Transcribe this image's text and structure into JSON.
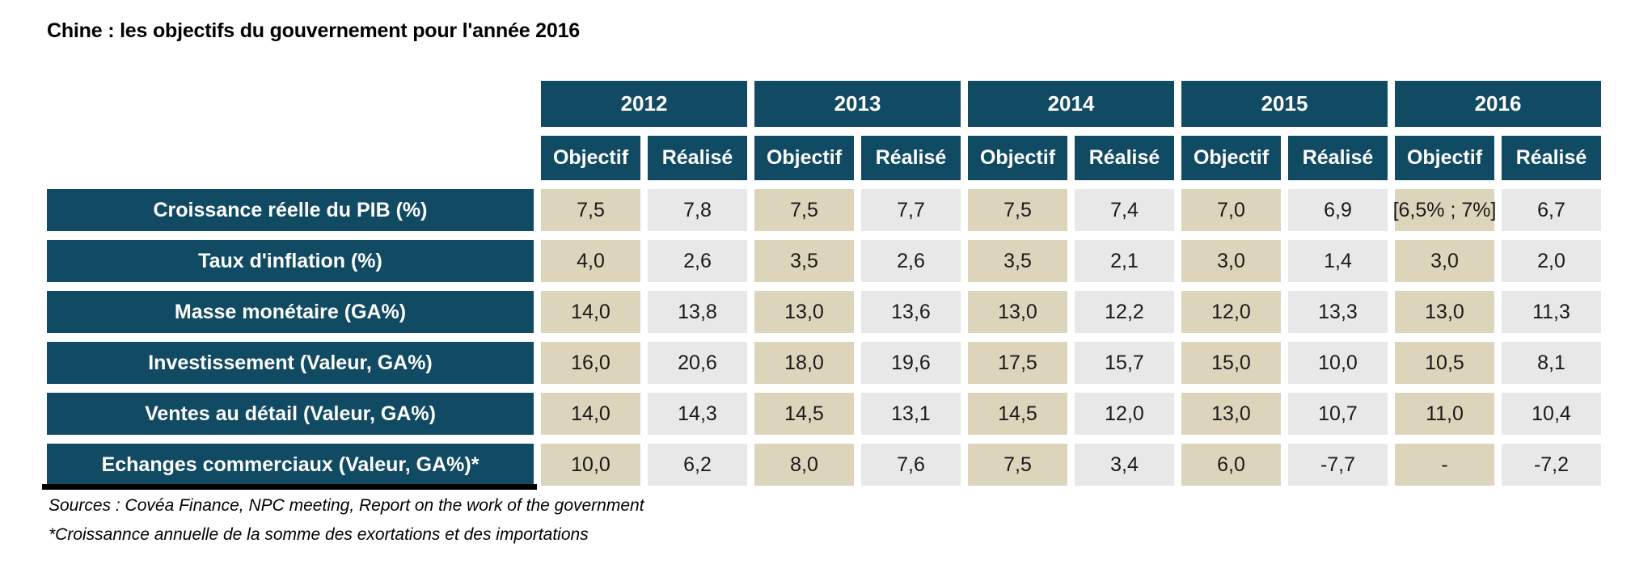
{
  "title": "Chine : les objectifs du gouvernement pour l'année 2016",
  "colors": {
    "header_bg": "#114A63",
    "objectif_bg": "#DDD4BC",
    "realise_bg": "#E8E8E8"
  },
  "table": {
    "years": [
      "2012",
      "2013",
      "2014",
      "2015",
      "2016"
    ],
    "col_objectif": "Objectif",
    "col_realise": "Réalisé",
    "rows": [
      {
        "label": "Croissance réelle du PIB (%)",
        "values": [
          "7,5",
          "7,8",
          "7,5",
          "7,7",
          "7,5",
          "7,4",
          "7,0",
          "6,9",
          "[6,5% ; 7%]",
          "6,7"
        ]
      },
      {
        "label": "Taux d'inflation (%)",
        "values": [
          "4,0",
          "2,6",
          "3,5",
          "2,6",
          "3,5",
          "2,1",
          "3,0",
          "1,4",
          "3,0",
          "2,0"
        ]
      },
      {
        "label": "Masse monétaire (GA%)",
        "values": [
          "14,0",
          "13,8",
          "13,0",
          "13,6",
          "13,0",
          "12,2",
          "12,0",
          "13,3",
          "13,0",
          "11,3"
        ]
      },
      {
        "label": "Investissement (Valeur, GA%)",
        "values": [
          "16,0",
          "20,6",
          "18,0",
          "19,6",
          "17,5",
          "15,7",
          "15,0",
          "10,0",
          "10,5",
          "8,1"
        ]
      },
      {
        "label": "Ventes au détail (Valeur, GA%)",
        "values": [
          "14,0",
          "14,3",
          "14,5",
          "13,1",
          "14,5",
          "12,0",
          "13,0",
          "10,7",
          "11,0",
          "10,4"
        ]
      },
      {
        "label": "Echanges commerciaux (Valeur, GA%)*",
        "values": [
          "10,0",
          "6,2",
          "8,0",
          "7,6",
          "7,5",
          "3,4",
          "6,0",
          "-7,7",
          "-",
          "-7,2"
        ]
      }
    ]
  },
  "footer": {
    "sources": "Sources : Covéa Finance, NPC meeting, Report on the work of the government",
    "footnote": "*Croissannce annuelle de la somme des exortations et des importations"
  }
}
